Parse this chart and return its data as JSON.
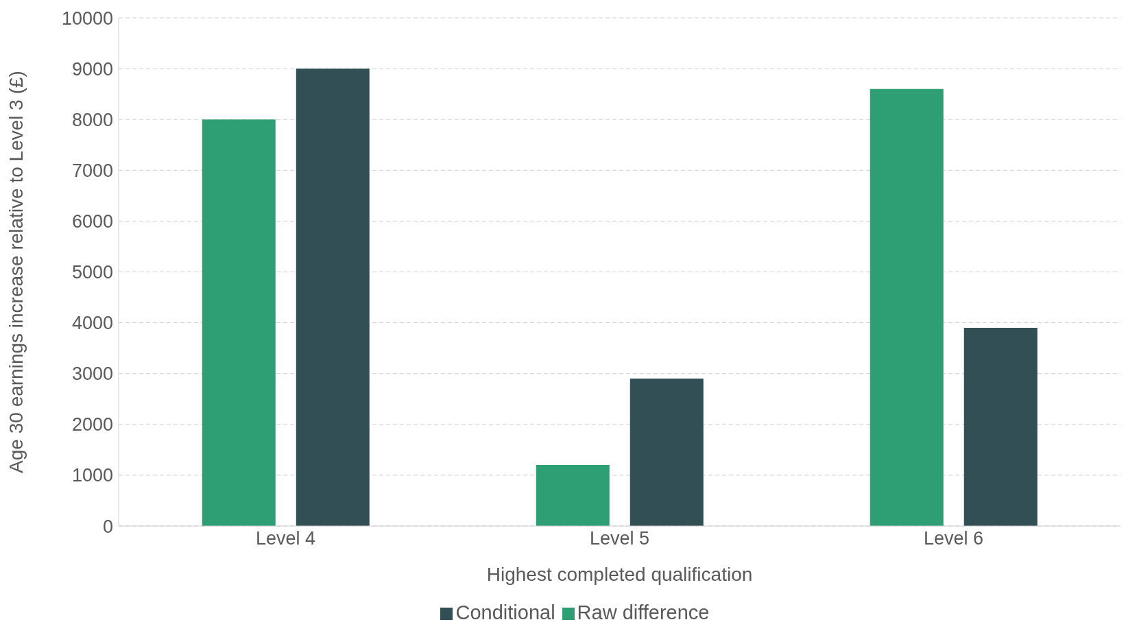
{
  "chart_data": {
    "type": "bar",
    "categories": [
      "Level 4",
      "Level 5",
      "Level 6"
    ],
    "series": [
      {
        "name": "Raw difference",
        "color": "#2e9e74",
        "values": [
          8000,
          1200,
          8600
        ]
      },
      {
        "name": "Conditional",
        "color": "#314f54",
        "values": [
          9000,
          2900,
          3900
        ]
      }
    ],
    "xlabel": "Highest completed qualification",
    "ylabel": "Age 30 earnings increase relative to Level 3 (£)",
    "ylim": [
      0,
      10000
    ],
    "yticks": [
      0,
      1000,
      2000,
      3000,
      4000,
      5000,
      6000,
      7000,
      8000,
      9000,
      10000
    ],
    "grid": "y",
    "legend": "bottom"
  }
}
